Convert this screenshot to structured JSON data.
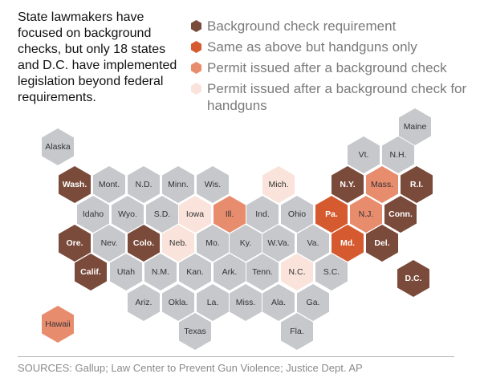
{
  "intro": "State lawmakers have focused on background checks, but only 18 states and D.C. have implemented legislation beyond federal requirements.",
  "legend": [
    {
      "label": "Background check requirement",
      "color": "#7a4a3a"
    },
    {
      "label": "Same as above but handguns only",
      "color": "#d65a30"
    },
    {
      "label": "Permit issued after a background check",
      "color": "#e88c6e"
    },
    {
      "label": "Permit issued after a background check for handguns",
      "color": "#f9e3da"
    }
  ],
  "no_requirement_color": "#c6c8cc",
  "states": [
    {
      "label": "Maine",
      "category": 0
    },
    {
      "label": "Alaska",
      "category": 0
    },
    {
      "label": "Vt.",
      "category": 0
    },
    {
      "label": "N.H.",
      "category": 0
    },
    {
      "label": "Wash.",
      "category": 1
    },
    {
      "label": "Mont.",
      "category": 0
    },
    {
      "label": "N.D.",
      "category": 0
    },
    {
      "label": "Minn.",
      "category": 0
    },
    {
      "label": "Wis.",
      "category": 0
    },
    {
      "label": "Mich.",
      "category": 4
    },
    {
      "label": "N.Y.",
      "category": 1
    },
    {
      "label": "Mass.",
      "category": 3
    },
    {
      "label": "R.I.",
      "category": 1
    },
    {
      "label": "Idaho",
      "category": 0
    },
    {
      "label": "Wyo.",
      "category": 0
    },
    {
      "label": "S.D.",
      "category": 0
    },
    {
      "label": "Iowa",
      "category": 4
    },
    {
      "label": "Ill.",
      "category": 3
    },
    {
      "label": "Ind.",
      "category": 0
    },
    {
      "label": "Ohio",
      "category": 0
    },
    {
      "label": "Pa.",
      "category": 2
    },
    {
      "label": "N.J.",
      "category": 3
    },
    {
      "label": "Conn.",
      "category": 1
    },
    {
      "label": "Ore.",
      "category": 1
    },
    {
      "label": "Nev.",
      "category": 0
    },
    {
      "label": "Colo.",
      "category": 1
    },
    {
      "label": "Neb.",
      "category": 4
    },
    {
      "label": "Mo.",
      "category": 0
    },
    {
      "label": "Ky.",
      "category": 0
    },
    {
      "label": "W.Va.",
      "category": 0
    },
    {
      "label": "Va.",
      "category": 0
    },
    {
      "label": "Md.",
      "category": 2
    },
    {
      "label": "Del.",
      "category": 1
    },
    {
      "label": "Calif.",
      "category": 1
    },
    {
      "label": "Utah",
      "category": 0
    },
    {
      "label": "N.M.",
      "category": 0
    },
    {
      "label": "Kan.",
      "category": 0
    },
    {
      "label": "Ark.",
      "category": 0
    },
    {
      "label": "Tenn.",
      "category": 0
    },
    {
      "label": "N.C.",
      "category": 4
    },
    {
      "label": "S.C.",
      "category": 0
    },
    {
      "label": "D.C.",
      "category": 1
    },
    {
      "label": "Ariz.",
      "category": 0
    },
    {
      "label": "Okla.",
      "category": 0
    },
    {
      "label": "La.",
      "category": 0
    },
    {
      "label": "Miss.",
      "category": 0
    },
    {
      "label": "Ala.",
      "category": 0
    },
    {
      "label": "Ga.",
      "category": 0
    },
    {
      "label": "Hawaii",
      "category": 3
    },
    {
      "label": "Texas",
      "category": 0
    },
    {
      "label": "Fla.",
      "category": 0
    }
  ],
  "source": "SOURCES: Gallup; Law Center to Prevent Gun Violence; Justice Dept. AP"
}
